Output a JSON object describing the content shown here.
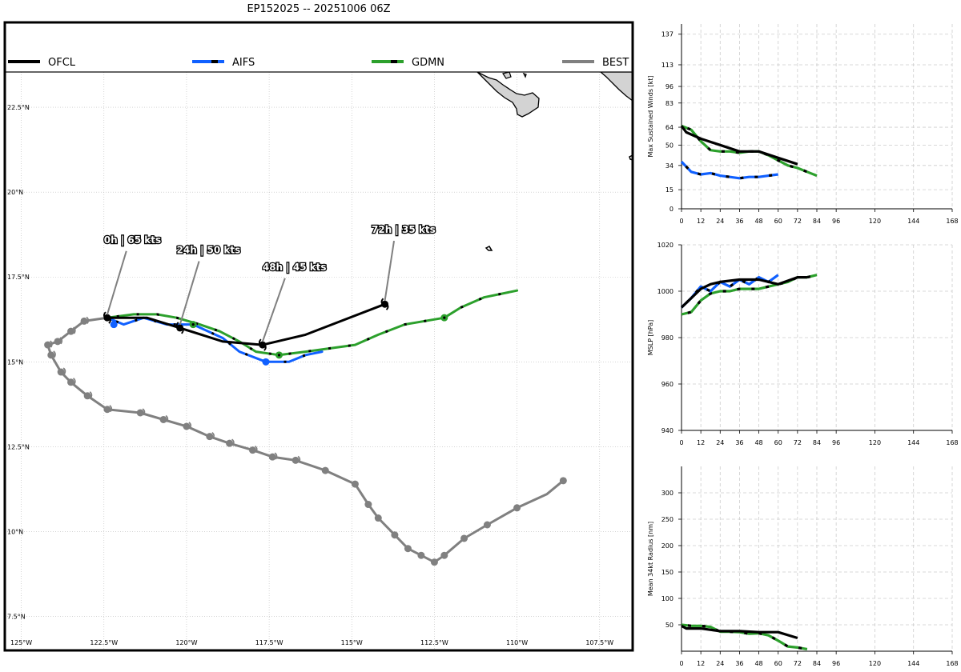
{
  "title": "EP152025 -- 20251006 06Z",
  "colors": {
    "OFCL": "#000000",
    "AIFS": "#1060ff",
    "GDMN": "#2ca02c",
    "BEST": "#808080",
    "land": "#d3d3d3",
    "grid": "#bbbbbb"
  },
  "chart_data": [
    {
      "type": "map",
      "legend": [
        "OFCL",
        "AIFS",
        "GDMN",
        "BEST"
      ],
      "xlim": [
        -125.5,
        -106.5
      ],
      "ylim": [
        6.5,
        25.0
      ],
      "lon_ticks": [
        -125,
        -122.5,
        -120,
        -117.5,
        -115,
        -112.5,
        -110,
        -107.5
      ],
      "lon_labels": [
        "125°W",
        "122.5°W",
        "120°W",
        "117.5°W",
        "115°W",
        "112.5°W",
        "110°W",
        "107.5°W"
      ],
      "lat_ticks": [
        7.5,
        10,
        12.5,
        15,
        17.5,
        20,
        22.5
      ],
      "lat_labels": [
        "7.5°N",
        "10°N",
        "12.5°N",
        "15°N",
        "17.5°N",
        "20°N",
        "22.5°N"
      ],
      "tracks": {
        "BEST": [
          [
            -108.6,
            11.5
          ],
          [
            -109.1,
            11.1
          ],
          [
            -110.0,
            10.7
          ],
          [
            -110.9,
            10.2
          ],
          [
            -111.6,
            9.8
          ],
          [
            -112.2,
            9.3
          ],
          [
            -112.5,
            9.1
          ],
          [
            -112.9,
            9.3
          ],
          [
            -113.3,
            9.5
          ],
          [
            -113.7,
            9.9
          ],
          [
            -114.2,
            10.4
          ],
          [
            -114.5,
            10.8
          ],
          [
            -114.9,
            11.4
          ],
          [
            -115.8,
            11.8
          ],
          [
            -116.7,
            12.1
          ],
          [
            -117.4,
            12.2
          ],
          [
            -118.0,
            12.4
          ],
          [
            -118.7,
            12.6
          ],
          [
            -119.3,
            12.8
          ],
          [
            -120.0,
            13.1
          ],
          [
            -120.7,
            13.3
          ],
          [
            -121.4,
            13.5
          ],
          [
            -122.4,
            13.6
          ],
          [
            -123.0,
            14.0
          ],
          [
            -123.5,
            14.4
          ],
          [
            -123.8,
            14.7
          ],
          [
            -124.1,
            15.2
          ],
          [
            -124.2,
            15.5
          ],
          [
            -123.9,
            15.6
          ],
          [
            -123.5,
            15.9
          ],
          [
            -123.1,
            16.2
          ],
          [
            -122.4,
            16.3
          ]
        ],
        "OFCL": [
          [
            -122.4,
            16.3
          ],
          [
            -121.2,
            16.3
          ],
          [
            -120.2,
            16.0
          ],
          [
            -118.9,
            15.6
          ],
          [
            -117.7,
            15.5
          ],
          [
            -116.4,
            15.8
          ],
          [
            -114.0,
            16.7
          ]
        ],
        "AIFS": [
          [
            -122.4,
            16.3
          ],
          [
            -121.9,
            16.1
          ],
          [
            -121.3,
            16.3
          ],
          [
            -120.6,
            16.1
          ],
          [
            -119.8,
            16.1
          ],
          [
            -118.9,
            15.7
          ],
          [
            -118.4,
            15.3
          ],
          [
            -117.6,
            15.0
          ],
          [
            -116.9,
            15.0
          ],
          [
            -116.4,
            15.2
          ],
          [
            -115.9,
            15.3
          ]
        ],
        "GDMN": [
          [
            -122.4,
            16.3
          ],
          [
            -121.6,
            16.4
          ],
          [
            -120.9,
            16.4
          ],
          [
            -120.3,
            16.3
          ],
          [
            -119.6,
            16.1
          ],
          [
            -119.0,
            15.9
          ],
          [
            -118.4,
            15.6
          ],
          [
            -117.9,
            15.3
          ],
          [
            -117.2,
            15.2
          ],
          [
            -116.4,
            15.3
          ],
          [
            -114.9,
            15.5
          ],
          [
            -114.2,
            15.8
          ],
          [
            -113.4,
            16.1
          ],
          [
            -112.2,
            16.3
          ],
          [
            -111.7,
            16.6
          ],
          [
            -111.0,
            16.9
          ],
          [
            -110.0,
            17.1
          ]
        ]
      },
      "markers": {
        "BEST": [
          [
            -108.6,
            11.5
          ],
          [
            -110.0,
            10.7
          ],
          [
            -110.9,
            10.2
          ],
          [
            -111.6,
            9.8
          ],
          [
            -112.2,
            9.3
          ],
          [
            -112.5,
            9.1
          ],
          [
            -112.9,
            9.3
          ],
          [
            -113.3,
            9.5
          ],
          [
            -113.7,
            9.9
          ],
          [
            -114.2,
            10.4
          ],
          [
            -114.5,
            10.8
          ],
          [
            -114.9,
            11.4
          ],
          [
            -115.8,
            11.8
          ],
          [
            -116.7,
            12.1
          ],
          [
            -117.4,
            12.2
          ],
          [
            -118.0,
            12.4
          ],
          [
            -118.7,
            12.6
          ],
          [
            -119.3,
            12.8
          ],
          [
            -120.0,
            13.1
          ],
          [
            -120.7,
            13.3
          ],
          [
            -121.4,
            13.5
          ],
          [
            -122.4,
            13.6
          ],
          [
            -123.0,
            14.0
          ],
          [
            -123.5,
            14.4
          ],
          [
            -123.8,
            14.7
          ],
          [
            -124.1,
            15.2
          ],
          [
            -124.2,
            15.5
          ],
          [
            -123.9,
            15.6
          ],
          [
            -123.5,
            15.9
          ],
          [
            -123.1,
            16.2
          ]
        ],
        "OFCL": [
          [
            -122.4,
            16.3
          ],
          [
            -120.2,
            16.0
          ],
          [
            -117.7,
            15.5
          ],
          [
            -114.0,
            16.7
          ]
        ],
        "AIFS": [
          [
            -122.2,
            16.1
          ],
          [
            -117.6,
            15.0
          ]
        ],
        "GDMN": [
          [
            -119.8,
            16.1
          ],
          [
            -117.2,
            15.2
          ],
          [
            -112.2,
            16.3
          ]
        ]
      },
      "annotations": [
        {
          "text": "0h | 65 kts",
          "lon": -122.4,
          "lat": 16.3,
          "tlon": -122.5,
          "tlat": 18.5
        },
        {
          "text": "24h | 50 kts",
          "lon": -120.2,
          "lat": 16.0,
          "tlon": -120.3,
          "tlat": 18.2
        },
        {
          "text": "48h | 45 kts",
          "lon": -117.7,
          "lat": 15.5,
          "tlon": -117.7,
          "tlat": 17.7
        },
        {
          "text": "72h | 35 kts",
          "lon": -114.0,
          "lat": 16.7,
          "tlon": -114.4,
          "tlat": 18.8
        }
      ]
    },
    {
      "type": "line",
      "ylabel": "Max Sustained Winds [kt]",
      "xlim": [
        0,
        168
      ],
      "ylim": [
        0,
        145
      ],
      "xticks": [
        0,
        12,
        24,
        36,
        48,
        60,
        72,
        84,
        96,
        120,
        144,
        168
      ],
      "yticks": [
        0,
        15,
        34,
        50,
        64,
        83,
        96,
        113,
        137
      ],
      "series": [
        {
          "name": "OFCL",
          "x": [
            0,
            3,
            12,
            24,
            36,
            48,
            60,
            72
          ],
          "values": [
            65,
            60,
            55,
            50,
            45,
            45,
            40,
            35
          ]
        },
        {
          "name": "AIFS",
          "x": [
            0,
            6,
            12,
            18,
            24,
            30,
            36,
            42,
            48,
            54,
            60
          ],
          "values": [
            37,
            29,
            27,
            28,
            26,
            25,
            24,
            25,
            25,
            26,
            27
          ]
        },
        {
          "name": "GDMN",
          "x": [
            0,
            6,
            12,
            18,
            24,
            30,
            36,
            42,
            48,
            54,
            60,
            66,
            72,
            78,
            84
          ],
          "values": [
            65,
            62,
            53,
            46,
            45,
            45,
            44,
            45,
            45,
            42,
            38,
            34,
            32,
            29,
            26
          ]
        }
      ]
    },
    {
      "type": "line",
      "ylabel": "MSLP [hPa]",
      "xlim": [
        0,
        168
      ],
      "ylim": [
        940,
        1020
      ],
      "xticks": [
        0,
        12,
        24,
        36,
        48,
        60,
        72,
        84,
        96,
        120,
        144,
        168
      ],
      "yticks": [
        940,
        960,
        980,
        1000,
        1020
      ],
      "series": [
        {
          "name": "OFCL",
          "x": [
            0,
            6,
            12,
            18,
            24,
            36,
            48,
            60,
            72,
            78
          ],
          "values": [
            993,
            997,
            1001,
            1003,
            1004,
            1005,
            1005,
            1003,
            1006,
            1006
          ]
        },
        {
          "name": "AIFS",
          "x": [
            0,
            6,
            12,
            18,
            24,
            30,
            36,
            42,
            48,
            54,
            60
          ],
          "values": [
            993,
            997,
            1002,
            1000,
            1004,
            1002,
            1005,
            1003,
            1006,
            1004,
            1007
          ]
        },
        {
          "name": "GDMN",
          "x": [
            0,
            6,
            12,
            18,
            24,
            30,
            36,
            42,
            48,
            54,
            60,
            66,
            72,
            78,
            84
          ],
          "values": [
            990,
            991,
            996,
            999,
            1000,
            1000,
            1001,
            1001,
            1001,
            1002,
            1003,
            1004,
            1006,
            1006,
            1007
          ]
        }
      ]
    },
    {
      "type": "line",
      "ylabel": "Mean 34kt Radius [nm]",
      "xlim": [
        0,
        168
      ],
      "ylim": [
        0,
        350
      ],
      "xticks": [
        0,
        12,
        24,
        36,
        48,
        60,
        72,
        84,
        96,
        120,
        144,
        168
      ],
      "yticks": [
        50,
        100,
        150,
        200,
        250,
        300
      ],
      "series": [
        {
          "name": "OFCL",
          "x": [
            0,
            3,
            12,
            24,
            36,
            48,
            60,
            72
          ],
          "values": [
            48,
            43,
            43,
            38,
            38,
            36,
            36,
            25
          ]
        },
        {
          "name": "GDMN",
          "x": [
            0,
            6,
            12,
            18,
            24,
            30,
            36,
            42,
            48,
            54,
            60,
            66,
            72,
            78
          ],
          "values": [
            50,
            48,
            48,
            46,
            37,
            37,
            36,
            33,
            34,
            30,
            20,
            9,
            7,
            4
          ]
        }
      ]
    }
  ]
}
